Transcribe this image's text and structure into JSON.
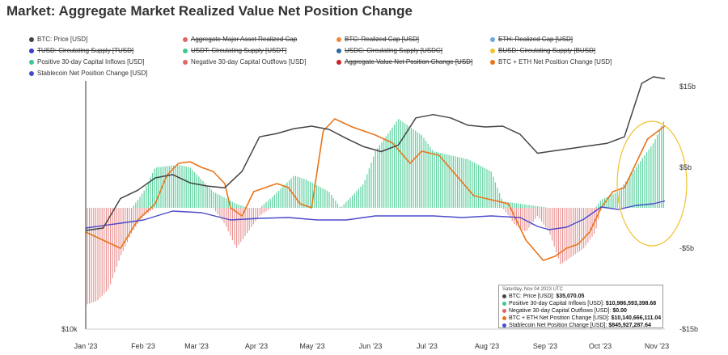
{
  "title": "Market: Aggregate Market Realized Value Net Position Change",
  "legend": [
    {
      "label": "BTC: Price [USD]",
      "color": "#444444",
      "struck": false
    },
    {
      "label": "Aggregate Major Asset Realized Cap",
      "color": "#e06666",
      "struck": true
    },
    {
      "label": "BTC: Realized Cap [USD]",
      "color": "#f0883e",
      "struck": true
    },
    {
      "label": "ETH: Realized Cap [USD]",
      "color": "#6fa8dc",
      "struck": true
    },
    {
      "label": "TUSD: Circulating Supply [TUSD]",
      "color": "#3c3cc8",
      "struck": true
    },
    {
      "label": "USDT: Circulating Supply [USDT]",
      "color": "#3cc88c",
      "struck": true
    },
    {
      "label": "USDC: Circulating Supply [USDC]",
      "color": "#2d6aa0",
      "struck": true
    },
    {
      "label": "BUSD: Circulating Supply [BUSD]",
      "color": "#f1c232",
      "struck": true
    },
    {
      "label": "Positive 30-day Capital Inflows [USD]",
      "color": "#3cc88c",
      "struck": false
    },
    {
      "label": "Negative 30-day Capital Outflows [USD]",
      "color": "#e06666",
      "struck": false
    },
    {
      "label": "Aggregate Value Net Position Change [USD]",
      "color": "#cc2222",
      "struck": true
    },
    {
      "label": "BTC + ETH Net Position Change [USD]",
      "color": "#e8751a",
      "struck": false
    },
    {
      "label": "Stablecoin Net Position Change [USD]",
      "color": "#4a4acc",
      "struck": false
    }
  ],
  "tooltip": {
    "date": "Saturday, Nov 04 2023 UTC",
    "rows": [
      {
        "label": "BTC: Price [USD]:",
        "value": "$35,070.05",
        "color": "#444444"
      },
      {
        "label": "Positive 30-day Capital Inflows [USD]:",
        "value": "$10,986,593,398.68",
        "color": "#3cc88c"
      },
      {
        "label": "Negative 30-day Capital Outflows [USD]:",
        "value": "$0.00",
        "color": "#e06666"
      },
      {
        "label": "BTC + ETH Net Position Change [USD]:",
        "value": "$10,140,666,111.04",
        "color": "#e8751a"
      },
      {
        "label": "Stablecoin Net Position Change [USD]:",
        "value": "$845,927,287.64",
        "color": "#4a4acc"
      }
    ]
  },
  "chart_data": {
    "type": "line",
    "x_ticks": [
      "Jan '23",
      "Feb '23",
      "Mar '23",
      "Apr '23",
      "May '23",
      "Jun '23",
      "Jul '23",
      "Aug '23",
      "Sep '23",
      "Oct '23",
      "Nov '23"
    ],
    "y_right_ticks": [
      "$15b",
      "$5b",
      "-$5b",
      "-$15b"
    ],
    "y_right_values": [
      15,
      5,
      -5,
      -15
    ],
    "y_left_ticks": [
      "$10k"
    ],
    "grid": false,
    "legend_position": "top",
    "series": [
      {
        "name": "BTC: Price [USD]",
        "color": "#444444",
        "t": [
          0,
          0.03,
          0.06,
          0.09,
          0.12,
          0.15,
          0.18,
          0.21,
          0.24,
          0.27,
          0.3,
          0.33,
          0.36,
          0.39,
          0.42,
          0.45,
          0.48,
          0.51,
          0.54,
          0.57,
          0.6,
          0.63,
          0.66,
          0.69,
          0.72,
          0.75,
          0.78,
          0.81,
          0.84,
          0.87,
          0.9,
          0.93,
          0.96,
          0.98,
          1.0
        ],
        "v": [
          16.6,
          16.9,
          20.5,
          21.5,
          23.0,
          23.4,
          22.4,
          22.0,
          21.8,
          23.8,
          28.0,
          28.4,
          29.0,
          29.3,
          28.9,
          27.8,
          26.8,
          26.2,
          27.0,
          30.3,
          30.7,
          30.3,
          29.4,
          29.2,
          29.3,
          28.3,
          26.0,
          26.3,
          26.6,
          26.9,
          27.2,
          28.0,
          34.5,
          35.3,
          35.07
        ]
      },
      {
        "name": "Positive 30-day Capital Inflows [USD]",
        "color": "#3cc88c",
        "t": [
          0,
          0.08,
          0.1,
          0.12,
          0.16,
          0.18,
          0.2,
          0.22,
          0.26,
          0.28,
          0.3,
          0.32,
          0.36,
          0.38,
          0.42,
          0.44,
          0.48,
          0.5,
          0.54,
          0.58,
          0.6,
          0.66,
          0.7,
          0.72,
          0.8,
          0.84,
          0.88,
          0.89,
          0.92,
          0.95,
          0.98,
          1.0
        ],
        "v": [
          0,
          0,
          2,
          5,
          5.3,
          5,
          3.5,
          2,
          0.5,
          0,
          0,
          1.2,
          4,
          3.5,
          2,
          0,
          3,
          7,
          11,
          9,
          7,
          6,
          4.5,
          0.8,
          0,
          0,
          0,
          1,
          2,
          5,
          8,
          11
        ]
      },
      {
        "name": "Negative 30-day Capital Outflows [USD]",
        "color": "#e06666",
        "t": [
          0,
          0.02,
          0.04,
          0.06,
          0.08,
          0.1,
          0.12,
          0.14,
          0.16,
          0.18,
          0.2,
          0.22,
          0.24,
          0.26,
          0.28,
          0.3,
          0.32,
          0.34,
          0.36,
          0.7,
          0.72,
          0.74,
          0.76,
          0.78,
          0.8,
          0.82,
          0.84,
          0.86,
          0.88,
          0.89,
          1.0
        ],
        "v": [
          -12,
          -11.5,
          -10,
          -6,
          -3,
          -1,
          0,
          0,
          0,
          0,
          0,
          0,
          -2,
          -5,
          -3,
          -1,
          0,
          0,
          0,
          0,
          0,
          -2,
          -3,
          -1,
          -3,
          -7,
          -6,
          -5,
          -3,
          0,
          0
        ]
      },
      {
        "name": "BTC + ETH Net Position Change [USD]",
        "color": "#e8751a",
        "t": [
          0,
          0.03,
          0.06,
          0.09,
          0.12,
          0.14,
          0.16,
          0.18,
          0.2,
          0.22,
          0.24,
          0.25,
          0.27,
          0.29,
          0.31,
          0.33,
          0.35,
          0.37,
          0.39,
          0.41,
          0.43,
          0.46,
          0.5,
          0.53,
          0.56,
          0.58,
          0.61,
          0.64,
          0.67,
          0.7,
          0.73,
          0.76,
          0.79,
          0.81,
          0.83,
          0.85,
          0.87,
          0.89,
          0.91,
          0.93,
          0.95,
          0.97,
          1.0
        ],
        "v": [
          -3,
          -4,
          -5,
          -1.5,
          0.5,
          4,
          5.5,
          5.7,
          5,
          4.5,
          3,
          0,
          -1,
          2,
          2.5,
          3,
          2.5,
          0.5,
          0,
          9.5,
          11,
          10,
          9,
          8,
          5.5,
          7,
          6.5,
          4,
          1.5,
          1,
          0.5,
          -4,
          -6.5,
          -6,
          -5,
          -4.5,
          -3,
          0,
          2,
          2.5,
          5.5,
          8.5,
          10.14
        ]
      },
      {
        "name": "Stablecoin Net Position Change [USD]",
        "color": "#4a4acc",
        "t": [
          0,
          0.05,
          0.1,
          0.15,
          0.2,
          0.25,
          0.3,
          0.35,
          0.4,
          0.45,
          0.5,
          0.55,
          0.6,
          0.65,
          0.7,
          0.75,
          0.78,
          0.8,
          0.83,
          0.86,
          0.89,
          0.92,
          0.95,
          0.98,
          1.0
        ],
        "v": [
          -2.5,
          -2,
          -1.5,
          -0.4,
          -0.6,
          -1.5,
          -1.3,
          -1.2,
          -1.5,
          -1.5,
          -1.0,
          -1.0,
          -1.0,
          -1.2,
          -1.0,
          -1.2,
          -2.3,
          -2.7,
          -2.4,
          -1.4,
          0.1,
          -0.2,
          0.3,
          0.5,
          0.85
        ]
      }
    ]
  }
}
